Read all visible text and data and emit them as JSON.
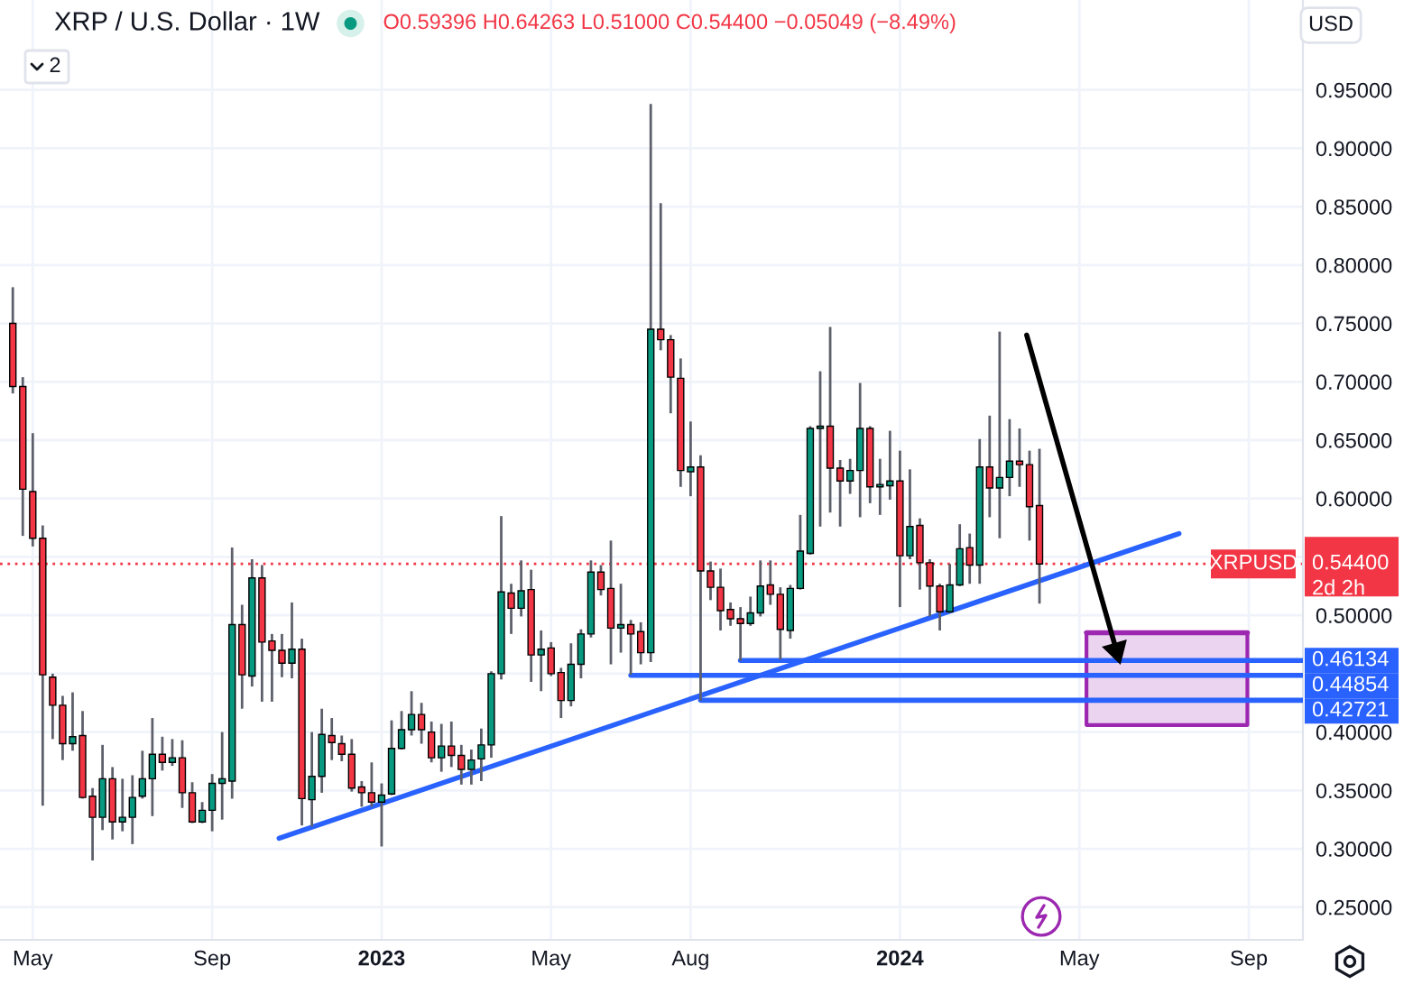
{
  "chart_data": {
    "type": "candlestick",
    "title": "XRP / U.S. Dollar · 1W",
    "annotations": [
      "O0.59396 H0.64263 L0.51000 C0.54400 −0.05049 (−8.49%)",
      "XRPUSD",
      "2d 2h",
      "USD",
      "2"
    ],
    "x": [
      "2022-04-18",
      "2022-04-25",
      "2022-05-02",
      "2022-05-09",
      "2022-05-16",
      "2022-05-23",
      "2022-05-30",
      "2022-06-06",
      "2022-06-13",
      "2022-06-20",
      "2022-06-27",
      "2022-07-04",
      "2022-07-11",
      "2022-07-18",
      "2022-07-25",
      "2022-08-01",
      "2022-08-08",
      "2022-08-15",
      "2022-08-22",
      "2022-08-29",
      "2022-09-05",
      "2022-09-12",
      "2022-09-19",
      "2022-09-26",
      "2022-10-03",
      "2022-10-10",
      "2022-10-17",
      "2022-10-24",
      "2022-10-31",
      "2022-11-07",
      "2022-11-14",
      "2022-11-21",
      "2022-11-28",
      "2022-12-05",
      "2022-12-12",
      "2022-12-19",
      "2022-12-26",
      "2023-01-02",
      "2023-01-09",
      "2023-01-16",
      "2023-01-23",
      "2023-01-30",
      "2023-02-06",
      "2023-02-13",
      "2023-02-20",
      "2023-02-27",
      "2023-03-06",
      "2023-03-13",
      "2023-03-20",
      "2023-03-27",
      "2023-04-03",
      "2023-04-10",
      "2023-04-17",
      "2023-04-24",
      "2023-05-01",
      "2023-05-08",
      "2023-05-15",
      "2023-05-22",
      "2023-05-29",
      "2023-06-05",
      "2023-06-12",
      "2023-06-19",
      "2023-06-26",
      "2023-07-03",
      "2023-07-10",
      "2023-07-17",
      "2023-07-24",
      "2023-07-31",
      "2023-08-07",
      "2023-08-14",
      "2023-08-21",
      "2023-08-28",
      "2023-09-04",
      "2023-09-11",
      "2023-09-18",
      "2023-09-25",
      "2023-10-02",
      "2023-10-09",
      "2023-10-16",
      "2023-10-23",
      "2023-10-30",
      "2023-11-06",
      "2023-11-13",
      "2023-11-20",
      "2023-11-27",
      "2023-12-04",
      "2023-12-11",
      "2023-12-18",
      "2023-12-25",
      "2024-01-01",
      "2024-01-08",
      "2024-01-15",
      "2024-01-22",
      "2024-01-29",
      "2024-02-05",
      "2024-02-12",
      "2024-02-19",
      "2024-02-26",
      "2024-03-04",
      "2024-03-11",
      "2024-03-18",
      "2024-03-25",
      "2024-04-01",
      "2024-04-08"
    ],
    "ohlc": [
      [
        0.75,
        0.781,
        0.69,
        0.696
      ],
      [
        0.696,
        0.704,
        0.568,
        0.608
      ],
      [
        0.606,
        0.656,
        0.559,
        0.566
      ],
      [
        0.566,
        0.577,
        0.337,
        0.449
      ],
      [
        0.447,
        0.45,
        0.394,
        0.423
      ],
      [
        0.423,
        0.431,
        0.376,
        0.39
      ],
      [
        0.39,
        0.434,
        0.384,
        0.396
      ],
      [
        0.397,
        0.418,
        0.343,
        0.344
      ],
      [
        0.345,
        0.352,
        0.29,
        0.327
      ],
      [
        0.327,
        0.389,
        0.316,
        0.36
      ],
      [
        0.36,
        0.37,
        0.308,
        0.323
      ],
      [
        0.323,
        0.36,
        0.315,
        0.327
      ],
      [
        0.327,
        0.363,
        0.304,
        0.344
      ],
      [
        0.345,
        0.384,
        0.343,
        0.36
      ],
      [
        0.36,
        0.412,
        0.328,
        0.381
      ],
      [
        0.381,
        0.396,
        0.367,
        0.374
      ],
      [
        0.374,
        0.394,
        0.371,
        0.378
      ],
      [
        0.378,
        0.393,
        0.335,
        0.348
      ],
      [
        0.348,
        0.357,
        0.322,
        0.323
      ],
      [
        0.323,
        0.34,
        0.322,
        0.333
      ],
      [
        0.333,
        0.364,
        0.315,
        0.356
      ],
      [
        0.356,
        0.4,
        0.325,
        0.36
      ],
      [
        0.358,
        0.558,
        0.343,
        0.492
      ],
      [
        0.492,
        0.509,
        0.42,
        0.449
      ],
      [
        0.448,
        0.548,
        0.439,
        0.532
      ],
      [
        0.532,
        0.543,
        0.426,
        0.477
      ],
      [
        0.478,
        0.484,
        0.426,
        0.47
      ],
      [
        0.47,
        0.484,
        0.447,
        0.459
      ],
      [
        0.459,
        0.511,
        0.446,
        0.471
      ],
      [
        0.471,
        0.48,
        0.32,
        0.343
      ],
      [
        0.342,
        0.4,
        0.319,
        0.362
      ],
      [
        0.362,
        0.42,
        0.348,
        0.398
      ],
      [
        0.397,
        0.412,
        0.376,
        0.391
      ],
      [
        0.39,
        0.397,
        0.375,
        0.381
      ],
      [
        0.381,
        0.394,
        0.349,
        0.352
      ],
      [
        0.353,
        0.358,
        0.336,
        0.348
      ],
      [
        0.348,
        0.374,
        0.336,
        0.34
      ],
      [
        0.34,
        0.356,
        0.302,
        0.346
      ],
      [
        0.347,
        0.41,
        0.346,
        0.386
      ],
      [
        0.386,
        0.418,
        0.385,
        0.402
      ],
      [
        0.402,
        0.435,
        0.397,
        0.415
      ],
      [
        0.415,
        0.425,
        0.39,
        0.402
      ],
      [
        0.4,
        0.409,
        0.374,
        0.378
      ],
      [
        0.378,
        0.407,
        0.366,
        0.388
      ],
      [
        0.388,
        0.409,
        0.37,
        0.38
      ],
      [
        0.38,
        0.389,
        0.355,
        0.368
      ],
      [
        0.368,
        0.385,
        0.355,
        0.376
      ],
      [
        0.377,
        0.403,
        0.358,
        0.389
      ],
      [
        0.389,
        0.452,
        0.378,
        0.45
      ],
      [
        0.45,
        0.585,
        0.445,
        0.52
      ],
      [
        0.519,
        0.527,
        0.484,
        0.506
      ],
      [
        0.506,
        0.547,
        0.499,
        0.521
      ],
      [
        0.522,
        0.539,
        0.443,
        0.466
      ],
      [
        0.466,
        0.487,
        0.435,
        0.471
      ],
      [
        0.472,
        0.477,
        0.448,
        0.45
      ],
      [
        0.451,
        0.455,
        0.412,
        0.427
      ],
      [
        0.427,
        0.476,
        0.422,
        0.458
      ],
      [
        0.458,
        0.488,
        0.446,
        0.484
      ],
      [
        0.484,
        0.547,
        0.481,
        0.537
      ],
      [
        0.537,
        0.543,
        0.517,
        0.522
      ],
      [
        0.523,
        0.564,
        0.458,
        0.489
      ],
      [
        0.489,
        0.527,
        0.468,
        0.492
      ],
      [
        0.492,
        0.496,
        0.449,
        0.484
      ],
      [
        0.486,
        0.494,
        0.458,
        0.468
      ],
      [
        0.468,
        0.938,
        0.46,
        0.745
      ],
      [
        0.745,
        0.853,
        0.727,
        0.736
      ],
      [
        0.736,
        0.74,
        0.673,
        0.704
      ],
      [
        0.703,
        0.72,
        0.61,
        0.624
      ],
      [
        0.623,
        0.666,
        0.602,
        0.627
      ],
      [
        0.627,
        0.637,
        0.427,
        0.538
      ],
      [
        0.538,
        0.546,
        0.513,
        0.524
      ],
      [
        0.524,
        0.54,
        0.487,
        0.504
      ],
      [
        0.505,
        0.511,
        0.491,
        0.497
      ],
      [
        0.497,
        0.507,
        0.461,
        0.493
      ],
      [
        0.493,
        0.516,
        0.491,
        0.502
      ],
      [
        0.502,
        0.547,
        0.499,
        0.525
      ],
      [
        0.526,
        0.547,
        0.509,
        0.518
      ],
      [
        0.518,
        0.524,
        0.462,
        0.488
      ],
      [
        0.487,
        0.526,
        0.48,
        0.523
      ],
      [
        0.523,
        0.586,
        0.522,
        0.555
      ],
      [
        0.553,
        0.662,
        0.552,
        0.66
      ],
      [
        0.66,
        0.709,
        0.576,
        0.662
      ],
      [
        0.662,
        0.747,
        0.588,
        0.626
      ],
      [
        0.626,
        0.633,
        0.576,
        0.615
      ],
      [
        0.615,
        0.634,
        0.604,
        0.624
      ],
      [
        0.624,
        0.699,
        0.584,
        0.66
      ],
      [
        0.66,
        0.662,
        0.596,
        0.61
      ],
      [
        0.61,
        0.634,
        0.586,
        0.612
      ],
      [
        0.611,
        0.658,
        0.599,
        0.615
      ],
      [
        0.615,
        0.641,
        0.507,
        0.551
      ],
      [
        0.551,
        0.625,
        0.548,
        0.576
      ],
      [
        0.577,
        0.583,
        0.522,
        0.545
      ],
      [
        0.545,
        0.548,
        0.499,
        0.525
      ],
      [
        0.525,
        0.527,
        0.487,
        0.503
      ],
      [
        0.503,
        0.544,
        0.502,
        0.526
      ],
      [
        0.526,
        0.578,
        0.525,
        0.557
      ],
      [
        0.558,
        0.57,
        0.527,
        0.543
      ],
      [
        0.543,
        0.651,
        0.527,
        0.627
      ],
      [
        0.627,
        0.671,
        0.584,
        0.609
      ],
      [
        0.609,
        0.743,
        0.566,
        0.618
      ],
      [
        0.618,
        0.668,
        0.602,
        0.632
      ],
      [
        0.632,
        0.66,
        0.61,
        0.629
      ],
      [
        0.629,
        0.641,
        0.564,
        0.593
      ],
      [
        0.59396,
        0.64263,
        0.51,
        0.544
      ]
    ],
    "colors": [
      "#f23645",
      "#f23645",
      "#f23645",
      "#f23645",
      "#f23645",
      "#f23645",
      "#089981",
      "#f23645",
      "#f23645",
      "#089981",
      "#f23645",
      "#089981",
      "#089981",
      "#089981",
      "#089981",
      "#f23645",
      "#089981",
      "#f23645",
      "#f23645",
      "#089981",
      "#089981",
      "#089981",
      "#089981",
      "#f23645",
      "#089981",
      "#f23645",
      "#f23645",
      "#f23645",
      "#089981",
      "#f23645",
      "#089981",
      "#089981",
      "#f23645",
      "#f23645",
      "#f23645",
      "#f23645",
      "#f23645",
      "#089981",
      "#089981",
      "#089981",
      "#089981",
      "#f23645",
      "#f23645",
      "#089981",
      "#f23645",
      "#f23645",
      "#089981",
      "#089981",
      "#089981",
      "#089981",
      "#f23645",
      "#089981",
      "#f23645",
      "#089981",
      "#f23645",
      "#f23645",
      "#089981",
      "#089981",
      "#089981",
      "#f23645",
      "#f23645",
      "#089981",
      "#f23645",
      "#f23645",
      "#089981",
      "#f23645",
      "#f23645",
      "#f23645",
      "#089981",
      "#f23645",
      "#f23645",
      "#f23645",
      "#f23645",
      "#f23645",
      "#089981",
      "#089981",
      "#f23645",
      "#f23645",
      "#089981",
      "#089981",
      "#089981",
      "#089981",
      "#f23645",
      "#f23645",
      "#089981",
      "#089981",
      "#f23645",
      "#089981",
      "#089981",
      "#f23645",
      "#089981",
      "#f23645",
      "#f23645",
      "#f23645",
      "#089981",
      "#089981",
      "#f23645",
      "#089981",
      "#f23645",
      "#089981",
      "#089981",
      "#f23645",
      "#f23645",
      "#f23645"
    ],
    "series": [
      {
        "type": "line",
        "x": [
          "2022-10-22",
          "2024-07-15"
        ],
        "values": [
          0.309,
          0.57
        ],
        "color": "#2962ff"
      },
      {
        "type": "line",
        "x": [
          "2024-05-11",
          "2024-09-01"
        ],
        "values": [
          0.485,
          0.485
        ],
        "lower": [
          0.406,
          0.406
        ],
        "upper": [
          0.485,
          0.485
        ],
        "color": "#9c27b0"
      },
      {
        "type": "line",
        "x": [
          "2023-09-11",
          "2024-10-10"
        ],
        "values": [
          0.46134,
          0.46134
        ],
        "color": "#2962ff",
        "value_labels": [
          null,
          "0.46134"
        ]
      },
      {
        "type": "line",
        "x": [
          "2023-06-26",
          "2024-10-10"
        ],
        "values": [
          0.44854,
          0.44854
        ],
        "color": "#2962ff",
        "value_labels": [
          null,
          "0.44854"
        ]
      },
      {
        "type": "line",
        "x": [
          "2023-08-14",
          "2024-10-10"
        ],
        "values": [
          0.42721,
          0.42721
        ],
        "color": "#2962ff",
        "value_labels": [
          null,
          "0.42721"
        ]
      },
      {
        "type": "line",
        "x": [
          "2024-03-30",
          "2024-06-01"
        ],
        "values": [
          0.74,
          0.47
        ],
        "color": "#000000",
        "marker": "triangle"
      }
    ],
    "ref_lines": [
      {
        "axis": "y",
        "value": 0.544,
        "label": "0.54400",
        "color": "#f23645",
        "line_style": "dotted"
      }
    ],
    "xlim": [
      "2022-04-09",
      "2024-10-10"
    ],
    "xticks": [
      {
        "value": "2022-05-02",
        "label": "May"
      },
      {
        "value": "2022-09-05",
        "label": "Sep"
      },
      {
        "value": "2023-01-02",
        "label": "2023"
      },
      {
        "value": "2023-05-01",
        "label": "May"
      },
      {
        "value": "2023-08-07",
        "label": "Aug"
      },
      {
        "value": "2024-01-01",
        "label": "2024"
      },
      {
        "value": "2024-05-06",
        "label": "May"
      },
      {
        "value": "2024-09-02",
        "label": "Sep"
      }
    ],
    "ylim": [
      0.222,
      1.027
    ],
    "yticks": [
      {
        "value": 0.25,
        "label": "0.25000"
      },
      {
        "value": 0.3,
        "label": "0.30000"
      },
      {
        "value": 0.35,
        "label": "0.35000"
      },
      {
        "value": 0.4,
        "label": "0.40000"
      },
      {
        "value": 0.45,
        "label": null
      },
      {
        "value": 0.5,
        "label": "0.50000"
      },
      {
        "value": 0.55,
        "label": null
      },
      {
        "value": 0.6,
        "label": "0.60000"
      },
      {
        "value": 0.65,
        "label": "0.65000"
      },
      {
        "value": 0.7,
        "label": "0.70000"
      },
      {
        "value": 0.75,
        "label": "0.75000"
      },
      {
        "value": 0.8,
        "label": "0.80000"
      },
      {
        "value": 0.85,
        "label": "0.85000"
      },
      {
        "value": 0.9,
        "label": "0.90000"
      },
      {
        "value": 0.95,
        "label": "0.95000"
      }
    ],
    "grid": true
  }
}
